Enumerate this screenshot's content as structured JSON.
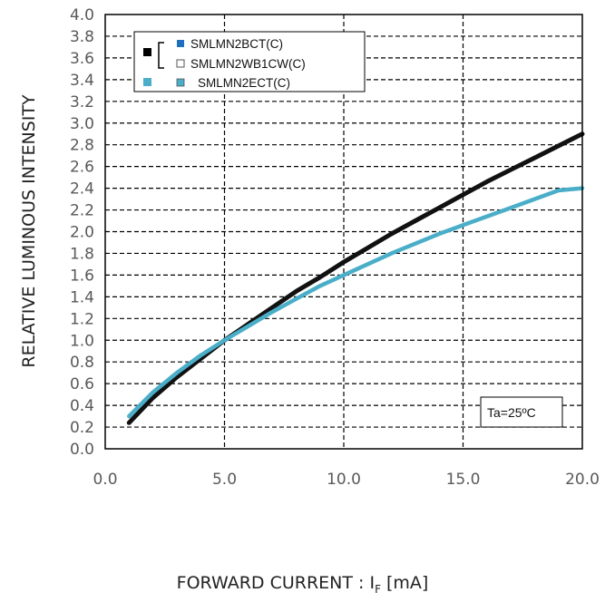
{
  "chart_data": {
    "type": "line",
    "title": "",
    "ylabel": "RELATIVE LUMINOUS INTENSITY",
    "xlabel_prefix": "FORWARD CURRENT : I",
    "xlabel_sub": "F",
    "xlabel_suffix": " [mA]",
    "xlim": [
      0,
      20
    ],
    "ylim": [
      0,
      4
    ],
    "grid": true,
    "x_ticks": [
      "0.0",
      "5.0",
      "10.0",
      "15.0",
      "20.0"
    ],
    "y_ticks": [
      "0.0",
      "0.2",
      "0.4",
      "0.6",
      "0.8",
      "1.0",
      "1.2",
      "1.4",
      "1.6",
      "1.8",
      "2.0",
      "2.2",
      "2.4",
      "2.6",
      "2.8",
      "3.0",
      "3.2",
      "3.4",
      "3.6",
      "3.8",
      "4.0"
    ],
    "legend_position": "top-left",
    "legend": [
      {
        "label": "SMLMN2BCT(C)",
        "marker_color": "#1f6fbf",
        "marker_style": "filled"
      },
      {
        "label": "SMLMN2WB1CW(C)",
        "marker_color": "#ffffff",
        "marker_style": "hollow"
      },
      {
        "label": "SMLMN2ECT(C)",
        "marker_color": "#4aaec9",
        "marker_style": "filled"
      }
    ],
    "group_marker_color": "#000000",
    "annotation": "Ta=25ºC",
    "series": [
      {
        "name": "SMLMN2BCT(C) / SMLMN2WB1CW(C)",
        "color": "#111111",
        "x": [
          1,
          2,
          3,
          4,
          5,
          6,
          7,
          8,
          9,
          10,
          11,
          12,
          13,
          14,
          15,
          16,
          17,
          18,
          19,
          20
        ],
        "y": [
          0.24,
          0.47,
          0.66,
          0.83,
          1.0,
          1.15,
          1.3,
          1.45,
          1.58,
          1.72,
          1.85,
          1.98,
          2.1,
          2.22,
          2.34,
          2.46,
          2.57,
          2.68,
          2.79,
          2.9
        ]
      },
      {
        "name": "SMLMN2ECT(C)",
        "color": "#4aaec9",
        "x": [
          1,
          2,
          3,
          4,
          5,
          6,
          7,
          8,
          9,
          10,
          11,
          12,
          13,
          14,
          15,
          16,
          17,
          18,
          19,
          20
        ],
        "y": [
          0.3,
          0.52,
          0.7,
          0.86,
          1.0,
          1.13,
          1.26,
          1.38,
          1.5,
          1.6,
          1.7,
          1.8,
          1.89,
          1.98,
          2.06,
          2.14,
          2.22,
          2.3,
          2.38,
          2.4
        ]
      }
    ]
  }
}
